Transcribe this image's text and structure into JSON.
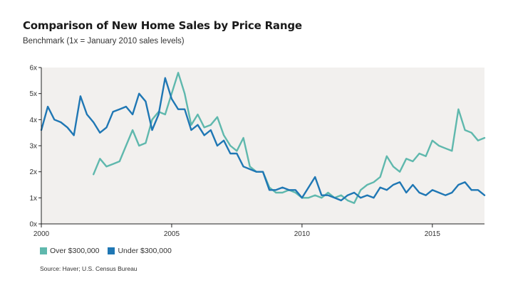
{
  "chart_data": {
    "type": "line",
    "title": "Comparison of New Home Sales by Price Range",
    "subtitle": "Benchmark (1x = January 2010 sales levels)",
    "xlim": [
      2000,
      2017
    ],
    "ylim": [
      0,
      6
    ],
    "x_ticks": [
      2000,
      2005,
      2010,
      2015
    ],
    "x_tick_labels": [
      "2000",
      "2005",
      "2010",
      "2015"
    ],
    "y_ticks": [
      0,
      1,
      2,
      3,
      4,
      5,
      6
    ],
    "y_tick_labels": [
      "0x",
      "1x",
      "2x",
      "3x",
      "4x",
      "5x",
      "6x"
    ],
    "grid": false,
    "legend_position": "bottom-left",
    "source": "Source: Haver; U.S. Census Bureau",
    "colors": {
      "plot_background": "#f2f0ee",
      "axis": "#222222"
    },
    "series": [
      {
        "name": "Over $300,000",
        "color": "#5fb8ad",
        "x": [
          2002.0,
          2002.25,
          2002.5,
          2002.75,
          2003.0,
          2003.25,
          2003.5,
          2003.75,
          2004.0,
          2004.25,
          2004.5,
          2004.75,
          2005.0,
          2005.25,
          2005.5,
          2005.75,
          2006.0,
          2006.25,
          2006.5,
          2006.75,
          2007.0,
          2007.25,
          2007.5,
          2007.75,
          2008.0,
          2008.25,
          2008.5,
          2008.75,
          2009.0,
          2009.25,
          2009.5,
          2009.75,
          2010.0,
          2010.25,
          2010.5,
          2010.75,
          2011.0,
          2011.25,
          2011.5,
          2011.75,
          2012.0,
          2012.25,
          2012.5,
          2012.75,
          2013.0,
          2013.25,
          2013.5,
          2013.75,
          2014.0,
          2014.25,
          2014.5,
          2014.75,
          2015.0,
          2015.25,
          2015.5,
          2015.75,
          2016.0,
          2016.25,
          2016.5,
          2016.75,
          2017.0
        ],
        "values": [
          1.9,
          2.5,
          2.2,
          2.3,
          2.4,
          3.0,
          3.6,
          3.0,
          3.1,
          4.0,
          4.3,
          4.2,
          5.0,
          5.8,
          5.0,
          3.8,
          4.2,
          3.7,
          3.8,
          4.1,
          3.4,
          3.0,
          2.8,
          3.3,
          2.2,
          2.0,
          2.0,
          1.4,
          1.2,
          1.2,
          1.3,
          1.2,
          1.0,
          1.0,
          1.1,
          1.0,
          1.2,
          1.0,
          1.1,
          0.9,
          0.8,
          1.3,
          1.5,
          1.6,
          1.8,
          2.6,
          2.2,
          2.0,
          2.5,
          2.4,
          2.7,
          2.6,
          3.2,
          3.0,
          2.9,
          2.8,
          4.4,
          3.6,
          3.5,
          3.2,
          3.3
        ]
      },
      {
        "name": "Under $300,000",
        "color": "#1f77b4",
        "x": [
          2000.0,
          2000.25,
          2000.5,
          2000.75,
          2001.0,
          2001.25,
          2001.5,
          2001.75,
          2002.0,
          2002.25,
          2002.5,
          2002.75,
          2003.0,
          2003.25,
          2003.5,
          2003.75,
          2004.0,
          2004.25,
          2004.5,
          2004.75,
          2005.0,
          2005.25,
          2005.5,
          2005.75,
          2006.0,
          2006.25,
          2006.5,
          2006.75,
          2007.0,
          2007.25,
          2007.5,
          2007.75,
          2008.0,
          2008.25,
          2008.5,
          2008.75,
          2009.0,
          2009.25,
          2009.5,
          2009.75,
          2010.0,
          2010.25,
          2010.5,
          2010.75,
          2011.0,
          2011.25,
          2011.5,
          2011.75,
          2012.0,
          2012.25,
          2012.5,
          2012.75,
          2013.0,
          2013.25,
          2013.5,
          2013.75,
          2014.0,
          2014.25,
          2014.5,
          2014.75,
          2015.0,
          2015.25,
          2015.5,
          2015.75,
          2016.0,
          2016.25,
          2016.5,
          2016.75,
          2017.0
        ],
        "values": [
          3.6,
          4.5,
          4.0,
          3.9,
          3.7,
          3.4,
          4.9,
          4.2,
          3.9,
          3.5,
          3.7,
          4.3,
          4.4,
          4.5,
          4.2,
          5.0,
          4.7,
          3.6,
          4.2,
          5.6,
          4.8,
          4.4,
          4.4,
          3.6,
          3.8,
          3.4,
          3.6,
          3.0,
          3.2,
          2.7,
          2.7,
          2.2,
          2.1,
          2.0,
          2.0,
          1.3,
          1.3,
          1.4,
          1.3,
          1.3,
          1.0,
          1.4,
          1.8,
          1.1,
          1.1,
          1.0,
          0.9,
          1.1,
          1.2,
          1.0,
          1.1,
          1.0,
          1.4,
          1.3,
          1.5,
          1.6,
          1.2,
          1.5,
          1.2,
          1.1,
          1.3,
          1.2,
          1.1,
          1.2,
          1.5,
          1.6,
          1.3,
          1.3,
          1.1
        ]
      }
    ]
  }
}
